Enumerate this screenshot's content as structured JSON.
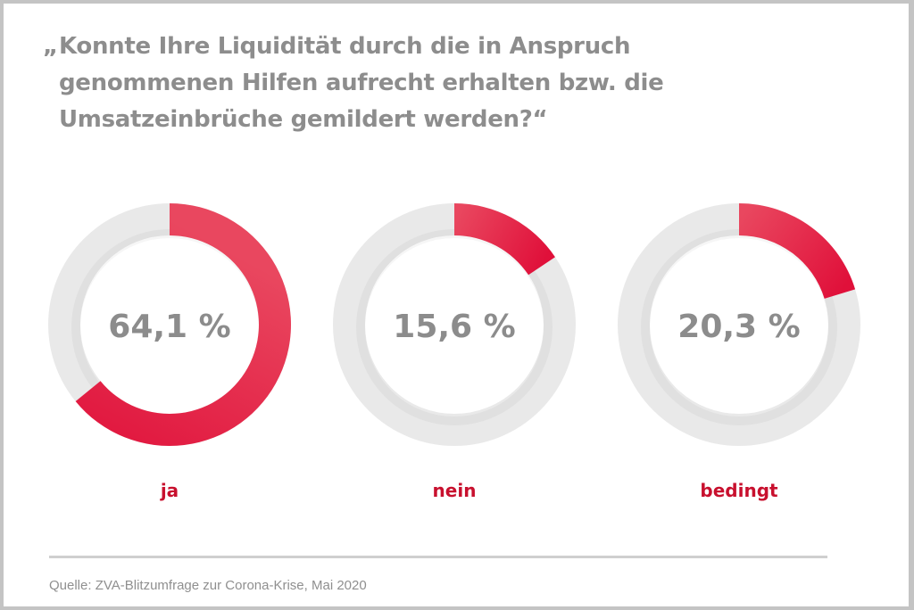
{
  "title": {
    "open_quote": "„",
    "lines": [
      "Konnte Ihre Liquidität durch die in Anspruch",
      "genommenen Hilfen aufrecht erhalten bzw. die",
      "Umsatzeinbrüche gemildert werden?“"
    ]
  },
  "chart_data": {
    "type": "pie",
    "subtype": "donut-small-multiples",
    "title": "„Konnte Ihre Liquidität durch die in Anspruch genommenen Hilfen aufrecht erhalten bzw. die Umsatzeinbrüche gemildert werden?“",
    "categories": [
      "ja",
      "nein",
      "bedingt"
    ],
    "values": [
      64.1,
      15.6,
      20.3
    ],
    "value_labels": [
      "64,1 %",
      "15,6 %",
      "20,3 %"
    ],
    "unit": "%",
    "total": 100,
    "legend": "none",
    "colors": {
      "value_start": "#e9475f",
      "value_end": "#e0103a",
      "remainder": "#e9e9e9",
      "category_label": "#c8102e",
      "value_label": "#8c8c8c"
    }
  },
  "source": "Quelle: ZVA-Blitzumfrage zur Corona-Krise, Mai 2020"
}
